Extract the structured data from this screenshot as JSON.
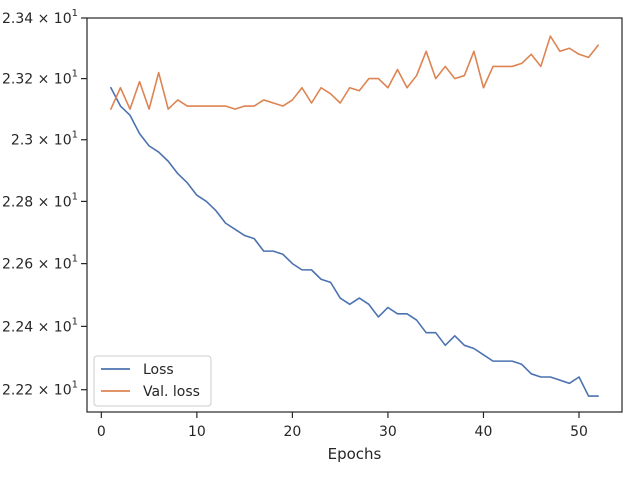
{
  "chart_data": {
    "type": "line",
    "title": "",
    "xlabel": "Epochs",
    "ylabel": "",
    "xlim": [
      -1.5,
      54.5
    ],
    "ylim": [
      22.13,
      23.4
    ],
    "yscale": "log",
    "grid": false,
    "legend_position": "lower-left",
    "x_ticks": [
      0,
      10,
      20,
      30,
      40,
      50
    ],
    "x_tick_labels": [
      "0",
      "10",
      "20",
      "30",
      "40",
      "50"
    ],
    "y_ticks": [
      22.2,
      22.4,
      22.6,
      22.8,
      23.0,
      23.2,
      23.4
    ],
    "y_tick_labels": [
      {
        "mantissa": "2.22",
        "base": "10",
        "exp": "1"
      },
      {
        "mantissa": "2.24",
        "base": "10",
        "exp": "1"
      },
      {
        "mantissa": "2.26",
        "base": "10",
        "exp": "1"
      },
      {
        "mantissa": "2.28",
        "base": "10",
        "exp": "1"
      },
      {
        "mantissa": "2.3",
        "base": "10",
        "exp": "1"
      },
      {
        "mantissa": "2.32",
        "base": "10",
        "exp": "1"
      },
      {
        "mantissa": "2.34",
        "base": "10",
        "exp": "1"
      }
    ],
    "x": [
      1,
      2,
      3,
      4,
      5,
      6,
      7,
      8,
      9,
      10,
      11,
      12,
      13,
      14,
      15,
      16,
      17,
      18,
      19,
      20,
      21,
      22,
      23,
      24,
      25,
      26,
      27,
      28,
      29,
      30,
      31,
      32,
      33,
      34,
      35,
      36,
      37,
      38,
      39,
      40,
      41,
      42,
      43,
      44,
      45,
      46,
      47,
      48,
      49,
      50,
      51,
      52
    ],
    "series": [
      {
        "name": "Loss",
        "color": "#4c72b0",
        "values": [
          23.17,
          23.11,
          23.08,
          23.02,
          22.98,
          22.96,
          22.93,
          22.89,
          22.86,
          22.82,
          22.8,
          22.77,
          22.73,
          22.71,
          22.69,
          22.68,
          22.64,
          22.64,
          22.63,
          22.6,
          22.58,
          22.58,
          22.55,
          22.54,
          22.49,
          22.47,
          22.49,
          22.47,
          22.43,
          22.46,
          22.44,
          22.44,
          22.42,
          22.38,
          22.38,
          22.34,
          22.37,
          22.34,
          22.33,
          22.31,
          22.29,
          22.29,
          22.29,
          22.28,
          22.25,
          22.24,
          22.24,
          22.23,
          22.22,
          22.24,
          22.18,
          22.18
        ]
      },
      {
        "name": "Val. loss",
        "color": "#dd8452",
        "values": [
          23.1,
          23.17,
          23.1,
          23.19,
          23.1,
          23.22,
          23.1,
          23.13,
          23.11,
          23.11,
          23.11,
          23.11,
          23.11,
          23.1,
          23.11,
          23.11,
          23.13,
          23.12,
          23.11,
          23.13,
          23.17,
          23.12,
          23.17,
          23.15,
          23.12,
          23.17,
          23.16,
          23.2,
          23.2,
          23.17,
          23.23,
          23.17,
          23.21,
          23.29,
          23.2,
          23.24,
          23.2,
          23.21,
          23.29,
          23.17,
          23.24,
          23.24,
          23.24,
          23.25,
          23.28,
          23.24,
          23.34,
          23.29,
          23.3,
          23.28,
          23.27,
          23.31
        ]
      }
    ]
  }
}
